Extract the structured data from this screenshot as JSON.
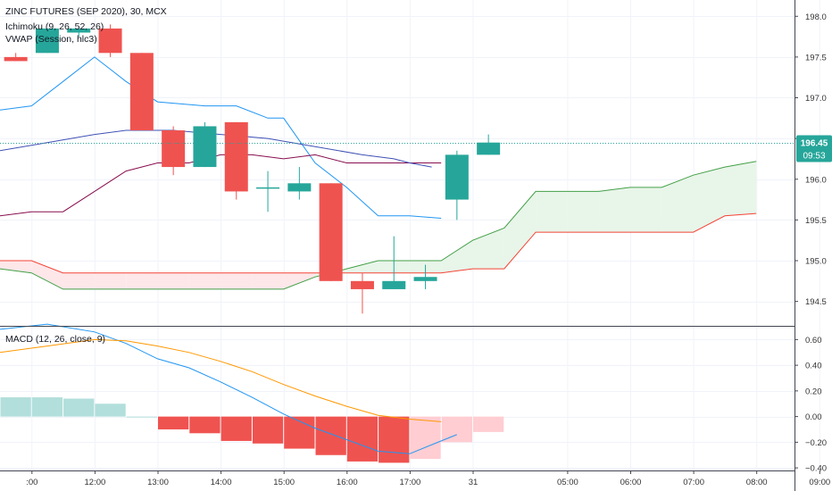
{
  "header": {
    "symbol": "ZINC FUTURES (SEP 2020), 30, MCX",
    "indicator_1": "Ichimoku (9, 26, 52, 26)",
    "indicator_2": "VWAP (Session, hlc3)",
    "macd_label": "MACD (12, 26, close, 9)"
  },
  "price_badge": {
    "value": "196.45",
    "countdown": "09:53"
  },
  "colors": {
    "up": "#26a69a",
    "down": "#ef5350",
    "conversion": "#2196f3",
    "base": "#880e4f",
    "leading_a": "#43a047",
    "leading_b": "#f44336",
    "cloud_bull": "#e8f5e9",
    "cloud_bear": "#fde7e9",
    "vwap": "#3f51b5",
    "macd": "#2196f3",
    "signal": "#ff9800",
    "hist_pos_pale": "#b2dfdb",
    "hist_neg": "#ef5350",
    "hist_neg_pale": "#ffcdd2",
    "grid": "#f0f3fa",
    "axis_text": "#333333"
  },
  "chart_data": [
    {
      "type": "candlestick",
      "title": "ZINC FUTURES (SEP 2020), 30, MCX",
      "x_ticks": [
        {
          "i": 1,
          "label": ":00"
        },
        {
          "i": 3,
          "label": "12:00"
        },
        {
          "i": 5,
          "label": "13:00"
        },
        {
          "i": 7,
          "label": "14:00"
        },
        {
          "i": 9,
          "label": "15:00"
        },
        {
          "i": 11,
          "label": "16:00"
        },
        {
          "i": 13,
          "label": "17:00"
        },
        {
          "i": 15,
          "label": "31"
        },
        {
          "i": 18,
          "label": "05:00"
        },
        {
          "i": 20,
          "label": "06:00"
        },
        {
          "i": 22,
          "label": "07:00"
        },
        {
          "i": 24,
          "label": "08:00"
        },
        {
          "i": 26,
          "label": "09:00"
        }
      ],
      "y_ticks": [
        198.0,
        197.5,
        197.0,
        196.5,
        196.0,
        195.5,
        195.0,
        194.5
      ],
      "ylim": [
        194.2,
        198.2
      ],
      "candles": [
        {
          "i": 0,
          "o": 197.5,
          "h": 197.55,
          "l": 197.45,
          "c": 197.45
        },
        {
          "i": 1,
          "o": 197.55,
          "h": 197.85,
          "l": 197.55,
          "c": 197.85
        },
        {
          "i": 2,
          "o": 197.8,
          "h": 197.85,
          "l": 197.75,
          "c": 197.85
        },
        {
          "i": 3,
          "o": 197.85,
          "h": 197.9,
          "l": 197.5,
          "c": 197.55
        },
        {
          "i": 4,
          "o": 197.55,
          "h": 197.55,
          "l": 196.6,
          "c": 196.6
        },
        {
          "i": 5,
          "o": 196.6,
          "h": 196.65,
          "l": 196.05,
          "c": 196.15
        },
        {
          "i": 6,
          "o": 196.15,
          "h": 196.7,
          "l": 196.15,
          "c": 196.65
        },
        {
          "i": 7,
          "o": 196.7,
          "h": 196.7,
          "l": 195.75,
          "c": 195.85
        },
        {
          "i": 8,
          "o": 195.9,
          "h": 196.1,
          "l": 195.6,
          "c": 195.9
        },
        {
          "i": 9,
          "o": 195.85,
          "h": 196.15,
          "l": 195.75,
          "c": 195.95
        },
        {
          "i": 10,
          "o": 195.95,
          "h": 195.95,
          "l": 194.75,
          "c": 194.75
        },
        {
          "i": 11,
          "o": 194.75,
          "h": 194.85,
          "l": 194.35,
          "c": 194.65
        },
        {
          "i": 12,
          "o": 194.65,
          "h": 195.3,
          "l": 194.65,
          "c": 194.75
        },
        {
          "i": 13,
          "o": 194.75,
          "h": 194.95,
          "l": 194.65,
          "c": 194.8
        },
        {
          "i": 14,
          "o": 195.75,
          "h": 196.35,
          "l": 195.5,
          "c": 196.3
        },
        {
          "i": 15,
          "o": 196.3,
          "h": 196.55,
          "l": 196.3,
          "c": 196.45
        }
      ],
      "series": [
        {
          "key": "conversion",
          "points": [
            [
              -0.5,
              196.85
            ],
            [
              0.5,
              196.9
            ],
            [
              1.5,
              197.2
            ],
            [
              2.5,
              197.5
            ],
            [
              3.5,
              197.2
            ],
            [
              4.5,
              196.95
            ],
            [
              6,
              196.9
            ],
            [
              7,
              196.9
            ],
            [
              8,
              196.75
            ],
            [
              8.5,
              196.75
            ],
            [
              9.5,
              196.2
            ],
            [
              10.5,
              195.9
            ],
            [
              11.5,
              195.55
            ],
            [
              12.5,
              195.55
            ],
            [
              13.5,
              195.52
            ]
          ]
        },
        {
          "key": "base",
          "points": [
            [
              -0.5,
              195.55
            ],
            [
              0.5,
              195.6
            ],
            [
              1.5,
              195.6
            ],
            [
              2.5,
              195.85
            ],
            [
              3.5,
              196.1
            ],
            [
              4.5,
              196.2
            ],
            [
              5.5,
              196.2
            ],
            [
              6.5,
              196.3
            ],
            [
              7.5,
              196.3
            ],
            [
              8.5,
              196.25
            ],
            [
              9.5,
              196.3
            ],
            [
              10.5,
              196.2
            ],
            [
              12,
              196.2
            ],
            [
              13,
              196.2
            ],
            [
              13.5,
              196.2
            ]
          ]
        },
        {
          "key": "vwap",
          "points": [
            [
              -0.5,
              196.35
            ],
            [
              1,
              196.45
            ],
            [
              2.5,
              196.55
            ],
            [
              3.5,
              196.6
            ],
            [
              5,
              196.6
            ],
            [
              6.5,
              196.55
            ],
            [
              8,
              196.5
            ],
            [
              9.5,
              196.4
            ],
            [
              11,
              196.3
            ],
            [
              12,
              196.25
            ],
            [
              12.5,
              196.2
            ],
            [
              13.2,
              196.15
            ]
          ]
        },
        {
          "key": "leading_a",
          "points": [
            [
              -0.5,
              194.9
            ],
            [
              0.5,
              194.85
            ],
            [
              1.5,
              194.65
            ],
            [
              2.5,
              194.65
            ],
            [
              3.5,
              194.65
            ],
            [
              4.5,
              194.65
            ],
            [
              5.5,
              194.65
            ],
            [
              6.5,
              194.65
            ],
            [
              7.5,
              194.65
            ],
            [
              8.5,
              194.65
            ],
            [
              9.5,
              194.8
            ],
            [
              10.5,
              194.9
            ],
            [
              11.5,
              195.0
            ],
            [
              12.5,
              195.0
            ],
            [
              13.5,
              195.0
            ],
            [
              14.5,
              195.25
            ],
            [
              15.5,
              195.4
            ],
            [
              16.5,
              195.85
            ],
            [
              17.5,
              195.85
            ],
            [
              18.5,
              195.85
            ],
            [
              19.5,
              195.9
            ],
            [
              20.5,
              195.9
            ],
            [
              21.5,
              196.05
            ],
            [
              22.5,
              196.15
            ],
            [
              23.5,
              196.22
            ]
          ]
        },
        {
          "key": "leading_b",
          "points": [
            [
              -0.5,
              195.0
            ],
            [
              0.5,
              195.0
            ],
            [
              1.5,
              194.85
            ],
            [
              2.5,
              194.85
            ],
            [
              3.5,
              194.85
            ],
            [
              4.5,
              194.85
            ],
            [
              5.5,
              194.85
            ],
            [
              6.5,
              194.85
            ],
            [
              7.5,
              194.85
            ],
            [
              8.5,
              194.85
            ],
            [
              9.5,
              194.85
            ],
            [
              10.5,
              194.85
            ],
            [
              11.5,
              194.85
            ],
            [
              12.5,
              194.85
            ],
            [
              13.5,
              194.85
            ],
            [
              14.5,
              194.9
            ],
            [
              15.5,
              194.9
            ],
            [
              16.5,
              195.35
            ],
            [
              17.5,
              195.35
            ],
            [
              18.5,
              195.35
            ],
            [
              19.5,
              195.35
            ],
            [
              20.5,
              195.35
            ],
            [
              21.5,
              195.35
            ],
            [
              22.5,
              195.55
            ],
            [
              23.5,
              195.58
            ]
          ]
        }
      ]
    },
    {
      "type": "macd",
      "title": "MACD (12, 26, close, 9)",
      "y_ticks": [
        0.6,
        0.4,
        0.2,
        0.0,
        -0.2,
        -0.4
      ],
      "ylim": [
        -0.42,
        0.7
      ],
      "macd": [
        [
          -0.5,
          0.68
        ],
        [
          1,
          0.72
        ],
        [
          2.5,
          0.66
        ],
        [
          3.5,
          0.57
        ],
        [
          4.5,
          0.45
        ],
        [
          5.5,
          0.38
        ],
        [
          6.5,
          0.27
        ],
        [
          7.5,
          0.15
        ],
        [
          8.5,
          0.02
        ],
        [
          9.5,
          -0.09
        ],
        [
          10.5,
          -0.18
        ],
        [
          11.5,
          -0.27
        ],
        [
          12.5,
          -0.29
        ],
        [
          13.5,
          -0.19
        ],
        [
          14,
          -0.14
        ]
      ],
      "signal": [
        [
          -0.5,
          0.5
        ],
        [
          1,
          0.55
        ],
        [
          2.5,
          0.6
        ],
        [
          3.5,
          0.59
        ],
        [
          4.5,
          0.55
        ],
        [
          5.5,
          0.5
        ],
        [
          6.5,
          0.43
        ],
        [
          7.5,
          0.35
        ],
        [
          8.5,
          0.25
        ],
        [
          9.5,
          0.16
        ],
        [
          10.5,
          0.08
        ],
        [
          11.5,
          0.01
        ],
        [
          12.5,
          -0.02
        ],
        [
          13.5,
          -0.04
        ]
      ],
      "histogram": [
        {
          "i": 0,
          "v": 0.15,
          "pale": true
        },
        {
          "i": 1,
          "v": 0.15,
          "pale": true
        },
        {
          "i": 2,
          "v": 0.14,
          "pale": true
        },
        {
          "i": 3,
          "v": 0.1,
          "pale": true
        },
        {
          "i": 4,
          "v": 0.0,
          "pale": true
        },
        {
          "i": 5,
          "v": -0.1,
          "pale": false
        },
        {
          "i": 6,
          "v": -0.13,
          "pale": false
        },
        {
          "i": 7,
          "v": -0.19,
          "pale": false
        },
        {
          "i": 8,
          "v": -0.21,
          "pale": false
        },
        {
          "i": 9,
          "v": -0.25,
          "pale": false
        },
        {
          "i": 10,
          "v": -0.3,
          "pale": false
        },
        {
          "i": 11,
          "v": -0.35,
          "pale": false
        },
        {
          "i": 12,
          "v": -0.36,
          "pale": false
        },
        {
          "i": 13,
          "v": -0.33,
          "pale": true
        },
        {
          "i": 14,
          "v": -0.2,
          "pale": true
        },
        {
          "i": 15,
          "v": -0.12,
          "pale": true
        }
      ]
    }
  ]
}
